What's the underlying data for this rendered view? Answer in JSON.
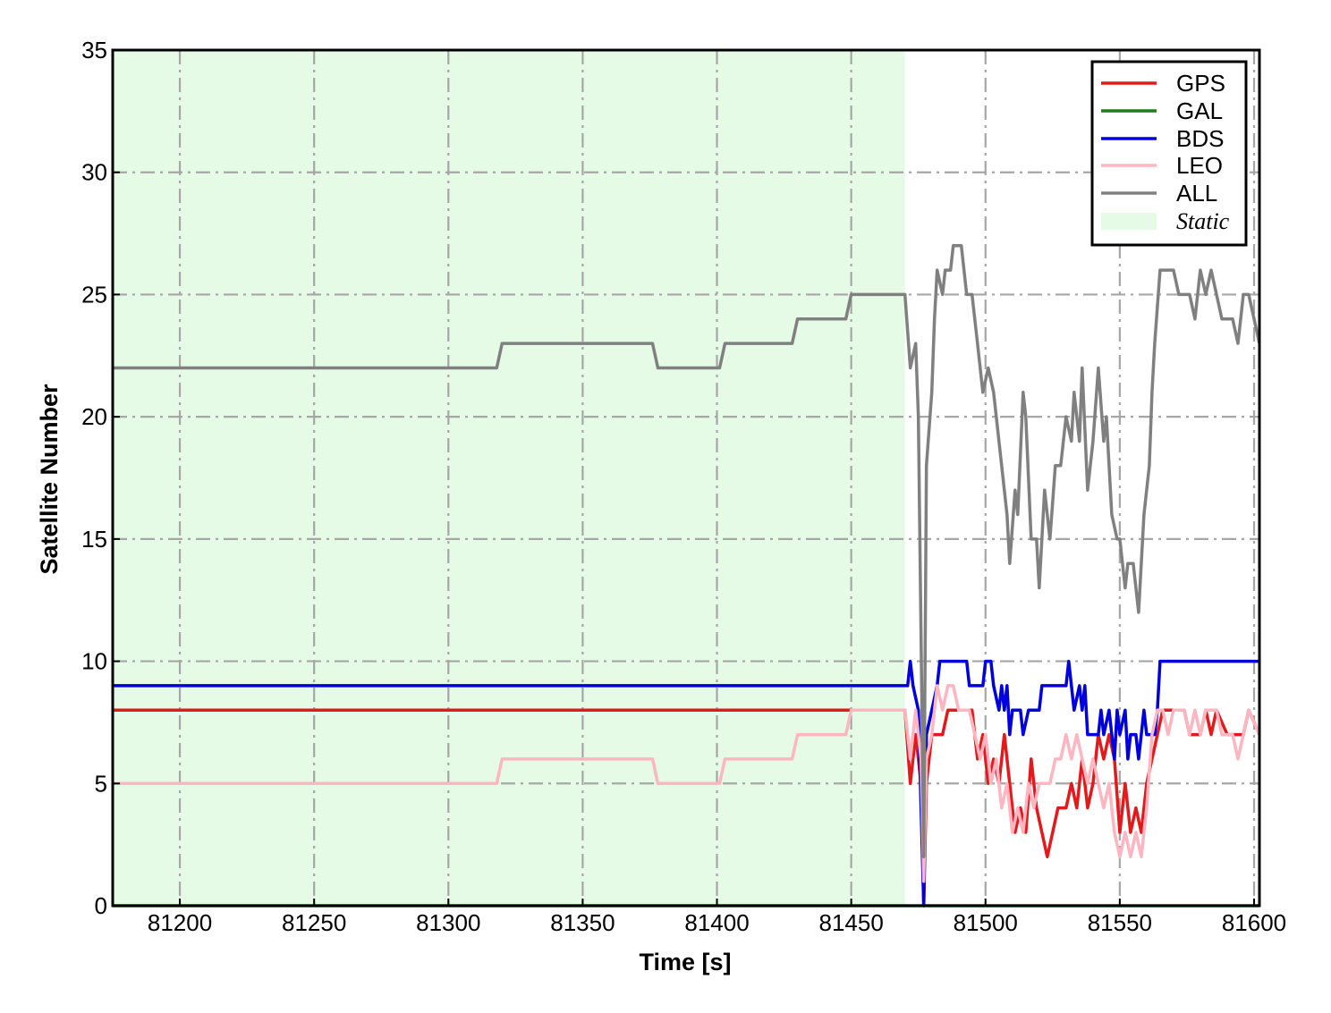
{
  "chart_data": {
    "type": "line",
    "xlabel": "Time [s]",
    "ylabel": "Satellite Number",
    "xlim": [
      81175,
      81602
    ],
    "ylim": [
      0,
      35
    ],
    "xticks": [
      81200,
      81250,
      81300,
      81350,
      81400,
      81450,
      81500,
      81550,
      81600
    ],
    "yticks": [
      0,
      5,
      10,
      15,
      20,
      25,
      30,
      35
    ],
    "grid": true,
    "legend_position": "top-right",
    "shaded_region": {
      "label": "Static",
      "x_start": 81175,
      "x_end": 81470,
      "color": "#e6fbe6"
    },
    "series": [
      {
        "name": "GPS",
        "color": "#e31a1c",
        "points": [
          [
            81175,
            8
          ],
          [
            81470,
            8
          ],
          [
            81472,
            5
          ],
          [
            81474,
            7
          ],
          [
            81476,
            5
          ],
          [
            81477,
            0
          ],
          [
            81478,
            5
          ],
          [
            81480,
            7
          ],
          [
            81484,
            7
          ],
          [
            81486,
            8
          ],
          [
            81495,
            8
          ],
          [
            81497,
            6
          ],
          [
            81499,
            7
          ],
          [
            81501,
            5
          ],
          [
            81503,
            6
          ],
          [
            81505,
            5
          ],
          [
            81507,
            7
          ],
          [
            81509,
            5
          ],
          [
            81511,
            3
          ],
          [
            81513,
            4
          ],
          [
            81515,
            3
          ],
          [
            81517,
            6
          ],
          [
            81519,
            4
          ],
          [
            81521,
            3
          ],
          [
            81523,
            2
          ],
          [
            81525,
            3
          ],
          [
            81527,
            4
          ],
          [
            81530,
            4
          ],
          [
            81532,
            5
          ],
          [
            81534,
            4
          ],
          [
            81536,
            6
          ],
          [
            81538,
            4
          ],
          [
            81540,
            5
          ],
          [
            81542,
            7
          ],
          [
            81544,
            6
          ],
          [
            81546,
            7
          ],
          [
            81548,
            6
          ],
          [
            81550,
            3
          ],
          [
            81552,
            5
          ],
          [
            81554,
            3
          ],
          [
            81556,
            4
          ],
          [
            81558,
            3
          ],
          [
            81560,
            5
          ],
          [
            81562,
            6
          ],
          [
            81564,
            7
          ],
          [
            81566,
            8
          ],
          [
            81574,
            8
          ],
          [
            81576,
            7
          ],
          [
            81580,
            7
          ],
          [
            81582,
            8
          ],
          [
            81584,
            7
          ],
          [
            81586,
            8
          ],
          [
            81590,
            7
          ],
          [
            81596,
            7
          ],
          [
            81598,
            8
          ],
          [
            81602,
            7
          ]
        ]
      },
      {
        "name": "GAL",
        "color": "#1a7f1a",
        "points": [
          [
            81175,
            0
          ],
          [
            81602,
            0
          ]
        ]
      },
      {
        "name": "BDS",
        "color": "#0000dd",
        "points": [
          [
            81175,
            9
          ],
          [
            81471,
            9
          ],
          [
            81472,
            10
          ],
          [
            81473,
            9
          ],
          [
            81475,
            8
          ],
          [
            81477,
            0
          ],
          [
            81478,
            7
          ],
          [
            81480,
            8
          ],
          [
            81482,
            9
          ],
          [
            81483,
            10
          ],
          [
            81493,
            10
          ],
          [
            81494,
            9
          ],
          [
            81499,
            9
          ],
          [
            81500,
            10
          ],
          [
            81502,
            10
          ],
          [
            81503,
            9
          ],
          [
            81505,
            8
          ],
          [
            81506,
            9
          ],
          [
            81507,
            8
          ],
          [
            81508,
            9
          ],
          [
            81509,
            7
          ],
          [
            81510,
            8
          ],
          [
            81513,
            8
          ],
          [
            81514,
            7
          ],
          [
            81516,
            8
          ],
          [
            81520,
            8
          ],
          [
            81521,
            9
          ],
          [
            81530,
            9
          ],
          [
            81531,
            10
          ],
          [
            81532,
            9
          ],
          [
            81533,
            8
          ],
          [
            81535,
            9
          ],
          [
            81536,
            8
          ],
          [
            81537,
            9
          ],
          [
            81538,
            7
          ],
          [
            81542,
            7
          ],
          [
            81543,
            8
          ],
          [
            81544,
            7
          ],
          [
            81546,
            8
          ],
          [
            81547,
            7
          ],
          [
            81548,
            6
          ],
          [
            81549,
            8
          ],
          [
            81550,
            7
          ],
          [
            81552,
            8
          ],
          [
            81553,
            6
          ],
          [
            81554,
            7
          ],
          [
            81556,
            7
          ],
          [
            81557,
            6
          ],
          [
            81559,
            8
          ],
          [
            81560,
            7
          ],
          [
            81563,
            7
          ],
          [
            81564,
            8
          ],
          [
            81565,
            10
          ],
          [
            81602,
            10
          ]
        ]
      },
      {
        "name": "LEO",
        "color": "#ffb6c1",
        "points": [
          [
            81175,
            5
          ],
          [
            81318,
            5
          ],
          [
            81320,
            6
          ],
          [
            81376,
            6
          ],
          [
            81378,
            5
          ],
          [
            81401,
            5
          ],
          [
            81403,
            6
          ],
          [
            81428,
            6
          ],
          [
            81430,
            7
          ],
          [
            81448,
            7
          ],
          [
            81450,
            8
          ],
          [
            81470,
            8
          ],
          [
            81472,
            6
          ],
          [
            81474,
            8
          ],
          [
            81476,
            6
          ],
          [
            81477,
            1
          ],
          [
            81478,
            6
          ],
          [
            81480,
            7
          ],
          [
            81482,
            9
          ],
          [
            81484,
            8
          ],
          [
            81486,
            9
          ],
          [
            81488,
            9
          ],
          [
            81490,
            8
          ],
          [
            81494,
            8
          ],
          [
            81496,
            7
          ],
          [
            81498,
            6
          ],
          [
            81500,
            7
          ],
          [
            81502,
            5
          ],
          [
            81504,
            6
          ],
          [
            81506,
            4
          ],
          [
            81508,
            5
          ],
          [
            81510,
            3
          ],
          [
            81512,
            4
          ],
          [
            81514,
            3
          ],
          [
            81516,
            5
          ],
          [
            81518,
            4
          ],
          [
            81520,
            5
          ],
          [
            81524,
            5
          ],
          [
            81526,
            6
          ],
          [
            81528,
            6
          ],
          [
            81530,
            7
          ],
          [
            81532,
            6
          ],
          [
            81534,
            7
          ],
          [
            81536,
            6
          ],
          [
            81538,
            5
          ],
          [
            81540,
            6
          ],
          [
            81542,
            5
          ],
          [
            81544,
            4
          ],
          [
            81546,
            5
          ],
          [
            81548,
            3
          ],
          [
            81550,
            2
          ],
          [
            81552,
            3
          ],
          [
            81554,
            2
          ],
          [
            81556,
            3
          ],
          [
            81558,
            2
          ],
          [
            81560,
            4
          ],
          [
            81562,
            7
          ],
          [
            81564,
            8
          ],
          [
            81566,
            8
          ],
          [
            81568,
            7
          ],
          [
            81570,
            8
          ],
          [
            81574,
            8
          ],
          [
            81576,
            7
          ],
          [
            81578,
            8
          ],
          [
            81580,
            7
          ],
          [
            81582,
            8
          ],
          [
            81586,
            8
          ],
          [
            81588,
            7
          ],
          [
            81592,
            7
          ],
          [
            81594,
            6
          ],
          [
            81596,
            7
          ],
          [
            81598,
            8
          ],
          [
            81602,
            7
          ]
        ]
      },
      {
        "name": "ALL",
        "color": "#808080",
        "points": [
          [
            81175,
            22
          ],
          [
            81318,
            22
          ],
          [
            81320,
            23
          ],
          [
            81376,
            23
          ],
          [
            81378,
            22
          ],
          [
            81401,
            22
          ],
          [
            81403,
            23
          ],
          [
            81428,
            23
          ],
          [
            81430,
            24
          ],
          [
            81448,
            24
          ],
          [
            81450,
            25
          ],
          [
            81470,
            25
          ],
          [
            81472,
            22
          ],
          [
            81474,
            23
          ],
          [
            81475,
            20
          ],
          [
            81477,
            2
          ],
          [
            81478,
            18
          ],
          [
            81480,
            21
          ],
          [
            81481,
            24
          ],
          [
            81482,
            26
          ],
          [
            81484,
            25
          ],
          [
            81485,
            26
          ],
          [
            81487,
            26
          ],
          [
            81488,
            27
          ],
          [
            81491,
            27
          ],
          [
            81493,
            25
          ],
          [
            81495,
            25
          ],
          [
            81497,
            23
          ],
          [
            81499,
            21
          ],
          [
            81501,
            22
          ],
          [
            81503,
            21
          ],
          [
            81505,
            19
          ],
          [
            81506,
            18
          ],
          [
            81508,
            16
          ],
          [
            81509,
            14
          ],
          [
            81511,
            17
          ],
          [
            81512,
            16
          ],
          [
            81514,
            21
          ],
          [
            81515,
            20
          ],
          [
            81517,
            15
          ],
          [
            81519,
            15
          ],
          [
            81520,
            13
          ],
          [
            81522,
            17
          ],
          [
            81524,
            15
          ],
          [
            81526,
            18
          ],
          [
            81528,
            18
          ],
          [
            81530,
            20
          ],
          [
            81532,
            19
          ],
          [
            81533,
            21
          ],
          [
            81535,
            19
          ],
          [
            81536,
            22
          ],
          [
            81538,
            17
          ],
          [
            81540,
            19
          ],
          [
            81542,
            22
          ],
          [
            81544,
            19
          ],
          [
            81545,
            20
          ],
          [
            81547,
            16
          ],
          [
            81549,
            15
          ],
          [
            81550,
            15
          ],
          [
            81552,
            13
          ],
          [
            81553,
            14
          ],
          [
            81555,
            14
          ],
          [
            81557,
            12
          ],
          [
            81559,
            16
          ],
          [
            81561,
            18
          ],
          [
            81562,
            21
          ],
          [
            81563,
            23
          ],
          [
            81565,
            26
          ],
          [
            81570,
            26
          ],
          [
            81572,
            25
          ],
          [
            81576,
            25
          ],
          [
            81578,
            24
          ],
          [
            81580,
            26
          ],
          [
            81582,
            25
          ],
          [
            81584,
            26
          ],
          [
            81586,
            25
          ],
          [
            81588,
            24
          ],
          [
            81592,
            24
          ],
          [
            81594,
            23
          ],
          [
            81596,
            25
          ],
          [
            81598,
            25
          ],
          [
            81600,
            24
          ],
          [
            81602,
            23
          ]
        ]
      }
    ]
  }
}
